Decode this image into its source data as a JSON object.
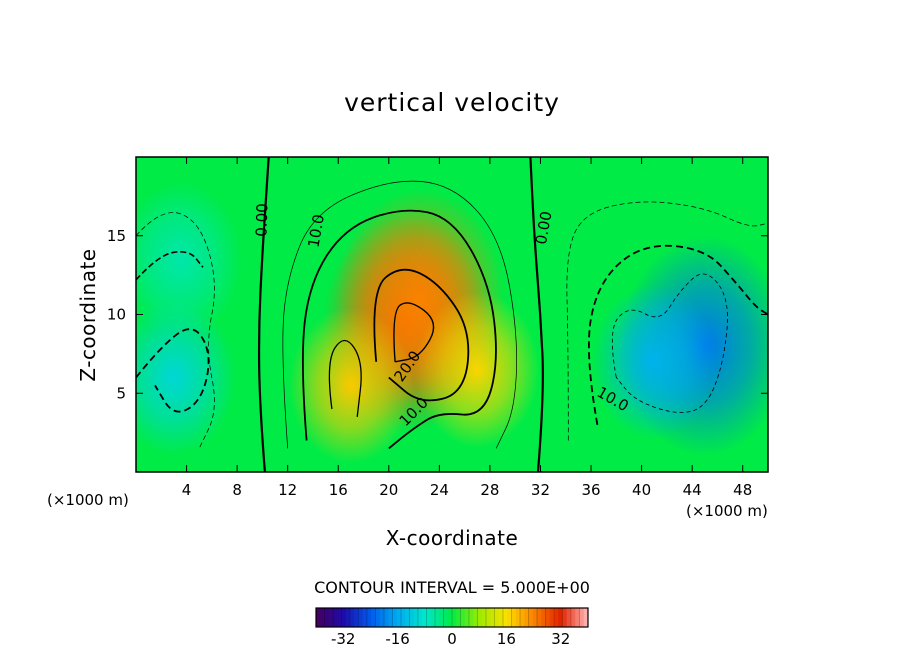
{
  "chart_data": {
    "type": "heatmap",
    "title": "vertical velocity",
    "xlabel": "X-coordinate",
    "ylabel": "Z-coordinate",
    "x_unit_label": "(×1000 m)",
    "xlim": [
      0,
      50
    ],
    "ylim": [
      0,
      20
    ],
    "x_ticks": [
      "4",
      "8",
      "12",
      "16",
      "20",
      "24",
      "28",
      "32",
      "36",
      "40",
      "44",
      "48"
    ],
    "x_tick_values": [
      4,
      8,
      12,
      16,
      20,
      24,
      28,
      32,
      36,
      40,
      44,
      48
    ],
    "y_ticks": [
      "5",
      "10",
      "15"
    ],
    "y_tick_values": [
      5,
      10,
      15
    ],
    "contour_interval_text": "CONTOUR INTERVAL = 5.000E+00",
    "contour_interval": 5,
    "contour_labels": [
      "0.00",
      "10.0",
      "20.0",
      "10.0",
      "0.00",
      "10.0"
    ],
    "colorbar": {
      "range": [
        -40,
        40
      ],
      "ticks": [
        "-32",
        "-16",
        "0",
        "16",
        "32"
      ],
      "tick_values": [
        -32,
        -16,
        0,
        16,
        32
      ]
    },
    "features": [
      {
        "x": 21.5,
        "z": 9.5,
        "value": 27
      },
      {
        "x": 22.5,
        "z": 11.0,
        "value": 24
      },
      {
        "x": 27.0,
        "z": 6.5,
        "value": 17
      },
      {
        "x": 17.0,
        "z": 5.5,
        "value": 18
      },
      {
        "x": 45.0,
        "z": 8.0,
        "value": -21
      },
      {
        "x": 41.0,
        "z": 7.0,
        "value": -15
      },
      {
        "x": 3.0,
        "z": 6.0,
        "value": -10
      },
      {
        "x": 3.5,
        "z": 13.5,
        "value": -6
      }
    ],
    "grid": false,
    "legend": "none"
  }
}
